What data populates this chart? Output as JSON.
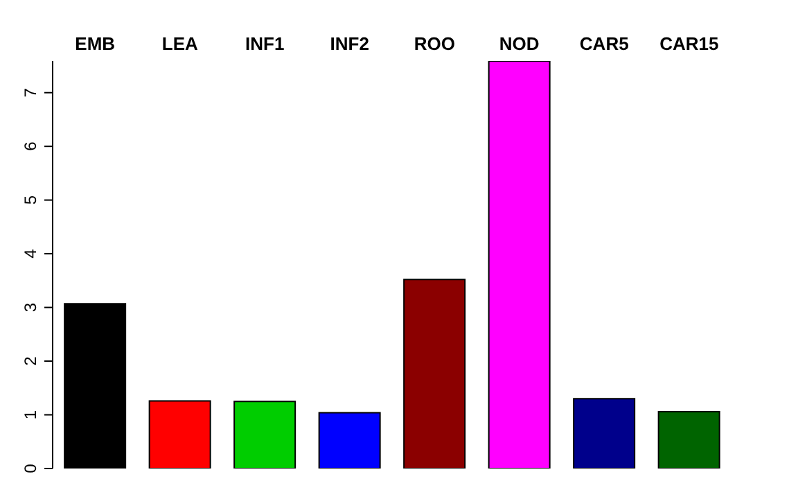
{
  "chart_data": {
    "type": "bar",
    "categories": [
      "EMB",
      "LEA",
      "INF1",
      "INF2",
      "ROO",
      "NOD",
      "CAR5",
      "CAR15"
    ],
    "values": [
      3.07,
      1.26,
      1.25,
      1.04,
      3.52,
      7.59,
      1.3,
      1.06
    ],
    "colors": [
      "#000000",
      "#ff0000",
      "#00cd00",
      "#0000ff",
      "#8b0000",
      "#ff00ff",
      "#00008b",
      "#006400"
    ],
    "ylim": [
      0,
      7.59
    ],
    "yticks": [
      0,
      1,
      2,
      3,
      4,
      5,
      6,
      7
    ],
    "grid": false
  }
}
